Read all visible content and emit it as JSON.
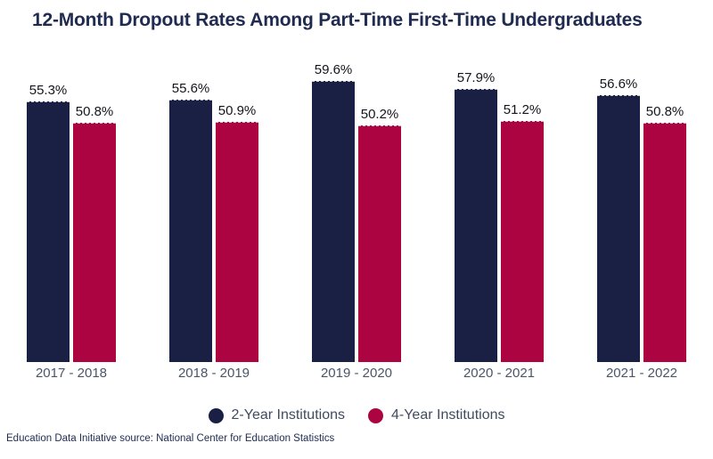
{
  "title": "12-Month Dropout Rates Among Part-Time First-Time Undergraduates",
  "footer": "Education Data Initiative source: National Center for Education Statistics",
  "colors": {
    "navy": "#1a2044",
    "crimson": "#ab0440",
    "title_text": "#202b52",
    "value_label_text": "#14151c",
    "axis_label_text": "#4b5568",
    "legend_text": "#404b60",
    "footer_text": "#1f2c50",
    "background": "#ffffff"
  },
  "chart_data": {
    "type": "bar",
    "title": "12-Month Dropout Rates Among Part-Time First-Time Undergraduates",
    "xlabel": "",
    "ylabel": "",
    "categories": [
      "2017 - 2018",
      "2018 - 2019",
      "2019 - 2020",
      "2020 - 2021",
      "2021 - 2022"
    ],
    "series": [
      {
        "name": "2-Year Institutions",
        "color_key": "navy",
        "values": [
          55.3,
          55.6,
          59.6,
          57.9,
          56.6
        ],
        "labels": [
          "55.3%",
          "55.6%",
          "59.6%",
          "57.9%",
          "56.6%"
        ]
      },
      {
        "name": "4-Year Institutions",
        "color_key": "crimson",
        "values": [
          50.8,
          50.9,
          50.2,
          51.2,
          50.8
        ],
        "labels": [
          "50.8%",
          "50.9%",
          "50.2%",
          "51.2%",
          "50.8%"
        ]
      }
    ],
    "ylim": [
      0,
      63.5
    ],
    "grid": false,
    "value_labels_shown": true,
    "legend_position": "bottom"
  }
}
